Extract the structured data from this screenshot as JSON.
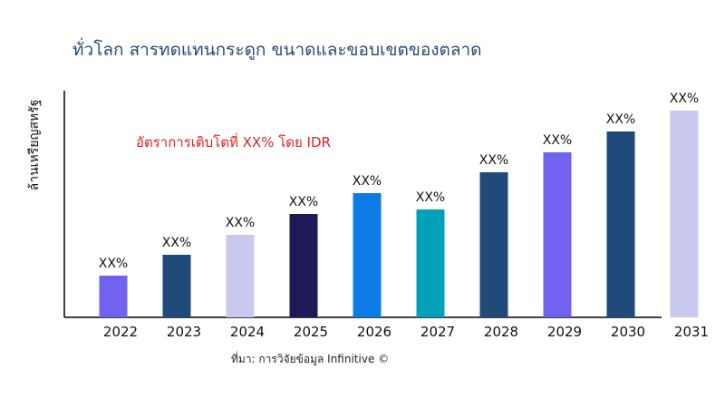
{
  "chart_data": {
    "type": "bar",
    "title": "ทั่วโลก สารทดแทนกระดูก ขนาดและขอบเขตของตลาด",
    "ylabel": "ล้านเหรียญสหรัฐ",
    "xlabel": "",
    "annotation": "อัตราการเติบโตที่ XX% โดย IDR",
    "source": "ที่มา: การวิจัยข้อมูล Infinitive ©",
    "categories": [
      "2022",
      "2023",
      "2024",
      "2025",
      "2026",
      "2027",
      "2028",
      "2029",
      "2030",
      "2031"
    ],
    "values": [
      46,
      69,
      91,
      114,
      137,
      119,
      160,
      182,
      205,
      228
    ],
    "data_labels": [
      "XX%",
      "XX%",
      "XX%",
      "XX%",
      "XX%",
      "XX%",
      "XX%",
      "XX%",
      "XX%",
      "XX%"
    ],
    "colors": [
      "#7163f0",
      "#1f4a7a",
      "#c9c9f0",
      "#1e1957",
      "#0d7be6",
      "#00a1b9",
      "#1f4a7a",
      "#7163f0",
      "#1f4a7a",
      "#c9c9f0"
    ],
    "ylim": [
      0,
      250
    ],
    "grid": false,
    "legend": "none"
  }
}
